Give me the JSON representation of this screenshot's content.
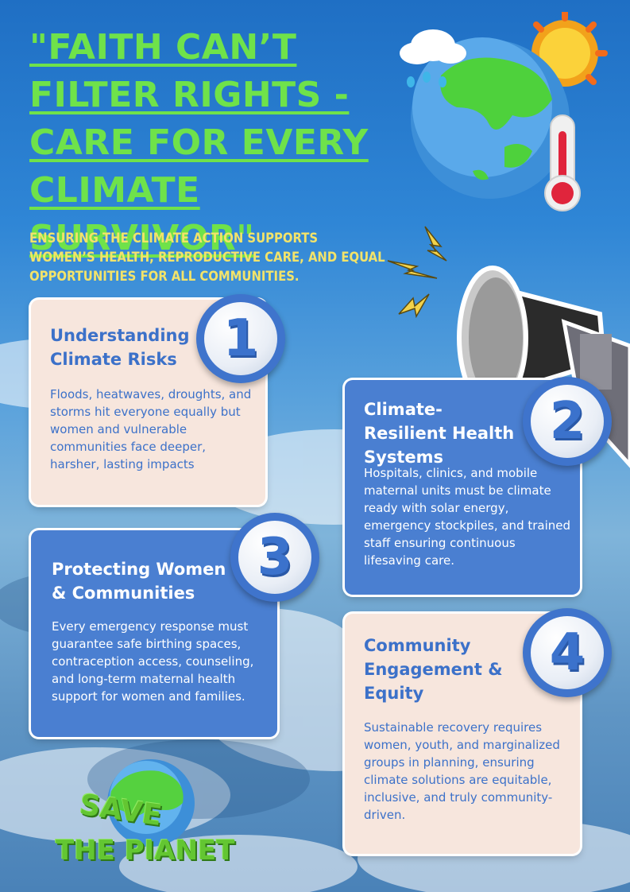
{
  "headline": "\"Faith can’t filter rights - care for every climate survivor\"",
  "subheading": "Ensuring the climate action supports women’s health, reproductive care, and equal opportunities for all communities.",
  "cards": [
    {
      "number": "1",
      "title": "Understanding Climate Risks",
      "body": "Floods, heatwaves, droughts, and storms hit everyone equally but women and vulnerable communities face deeper, harsher, lasting impacts"
    },
    {
      "number": "2",
      "title": "Climate-Resilient Health Systems",
      "body": "Hospitals, clinics, and mobile maternal units must be climate ready with solar energy, emergency stockpiles, and trained staff ensuring continuous lifesaving care."
    },
    {
      "number": "3",
      "title": "Protecting Women & Communities",
      "body": "Every emergency response must guarantee safe birthing spaces, contraception access, counseling, and long-term maternal health support for women and families."
    },
    {
      "number": "4",
      "title": "Community Engagement & Equity",
      "body": "Sustainable recovery requires women, youth, and marginalized groups in planning, ensuring climate solutions are equitable, inclusive, and truly community-driven."
    }
  ],
  "logo": {
    "line1": "SAVE",
    "line2": "THE PIANET"
  },
  "colors": {
    "headline": "#6fe24a",
    "subheading": "#f2e36a",
    "card_light": "#f7e6dd",
    "card_blue": "#4a7fd1",
    "accent_blue": "#3c71c9"
  },
  "icons": [
    "globe-weather-icon",
    "megaphone-icon",
    "lightning-icon",
    "save-planet-globe-icon"
  ]
}
